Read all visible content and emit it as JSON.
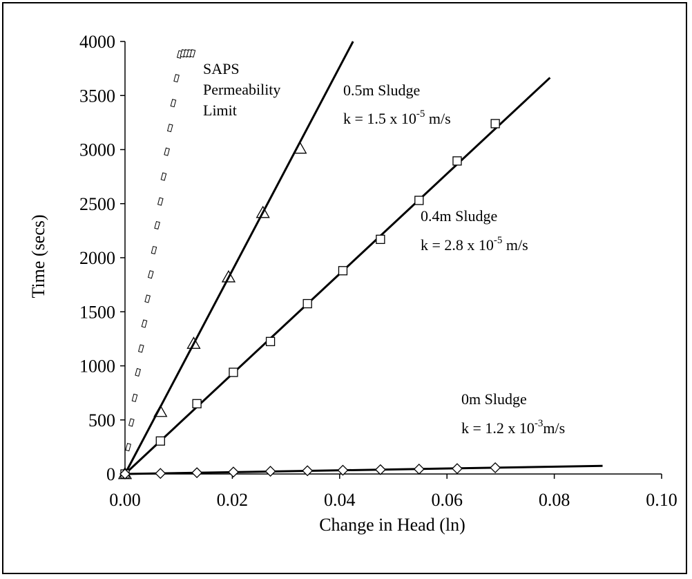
{
  "chart_data": {
    "type": "scatter",
    "xlabel": "Change in Head (ln)",
    "ylabel": "Time (secs)",
    "xlim": [
      0,
      0.1
    ],
    "ylim": [
      0,
      4000
    ],
    "xticks": [
      "0.00",
      "0.02",
      "0.04",
      "0.06",
      "0.08",
      "0.10"
    ],
    "yticks": [
      "0",
      "500",
      "1000",
      "1500",
      "2000",
      "2500",
      "3000",
      "3500",
      "4000"
    ],
    "grid": false,
    "series": [
      {
        "name": "SAPS Permeability Limit",
        "marker": "dotted-line",
        "style": "dotted",
        "x": [
          0.0,
          0.0006,
          0.0012,
          0.0018,
          0.0024,
          0.003,
          0.0036,
          0.0042,
          0.0048,
          0.0054,
          0.006,
          0.0066,
          0.0072,
          0.0078,
          0.0084,
          0.009,
          0.0096,
          0.0102,
          0.0108,
          0.0114,
          0.012,
          0.0126
        ],
        "y": [
          0,
          248,
          476,
          704,
          940,
          1160,
          1390,
          1620,
          1845,
          2070,
          2300,
          2520,
          2750,
          2980,
          3200,
          3430,
          3660,
          3880,
          3890,
          3890,
          3890,
          3890
        ]
      },
      {
        "name": "0.5m Sludge",
        "marker": "triangle",
        "x": [
          0.0,
          0.0066,
          0.0128,
          0.0193,
          0.0257,
          0.0326
        ],
        "y": [
          0,
          575,
          1205,
          1820,
          2415,
          3010
        ],
        "fit": {
          "x": [
            0,
            0.0425
          ],
          "y": [
            0,
            4000
          ]
        }
      },
      {
        "name": "0.4m Sludge",
        "marker": "square",
        "x": [
          0.0,
          0.0066,
          0.0134,
          0.0202,
          0.0271,
          0.034,
          0.0406,
          0.0476,
          0.0548,
          0.0619,
          0.069
        ],
        "y": [
          0,
          305,
          650,
          940,
          1225,
          1575,
          1880,
          2170,
          2530,
          2895,
          3240
        ],
        "fit": {
          "x": [
            0,
            0.0792
          ],
          "y": [
            0,
            3665
          ]
        }
      },
      {
        "name": "0m Sludge",
        "marker": "diamond",
        "x": [
          0.0,
          0.0066,
          0.0134,
          0.0202,
          0.0271,
          0.034,
          0.0406,
          0.0476,
          0.0548,
          0.0619,
          0.069
        ],
        "y": [
          0,
          5,
          12,
          18,
          25,
          30,
          35,
          40,
          45,
          50,
          58
        ],
        "fit": {
          "x": [
            0,
            0.089
          ],
          "y": [
            0,
            75
          ]
        }
      }
    ],
    "annotations": [
      {
        "id": "saps",
        "lines": [
          "SAPS",
          "Permeability",
          "Limit"
        ]
      },
      {
        "id": "s05",
        "name": "0.5m Sludge",
        "k_prefix": "k = 1.5 x 10",
        "k_exp": "-5",
        "k_unit": " m/s"
      },
      {
        "id": "s04",
        "name": "0.4m Sludge",
        "k_prefix": "k = 2.8 x 10",
        "k_exp": "-5",
        "k_unit": " m/s"
      },
      {
        "id": "s0",
        "name": "0m Sludge",
        "k_prefix": "k = 1.2 x 10",
        "k_exp": "-3",
        "k_unit": "m/s"
      }
    ]
  }
}
